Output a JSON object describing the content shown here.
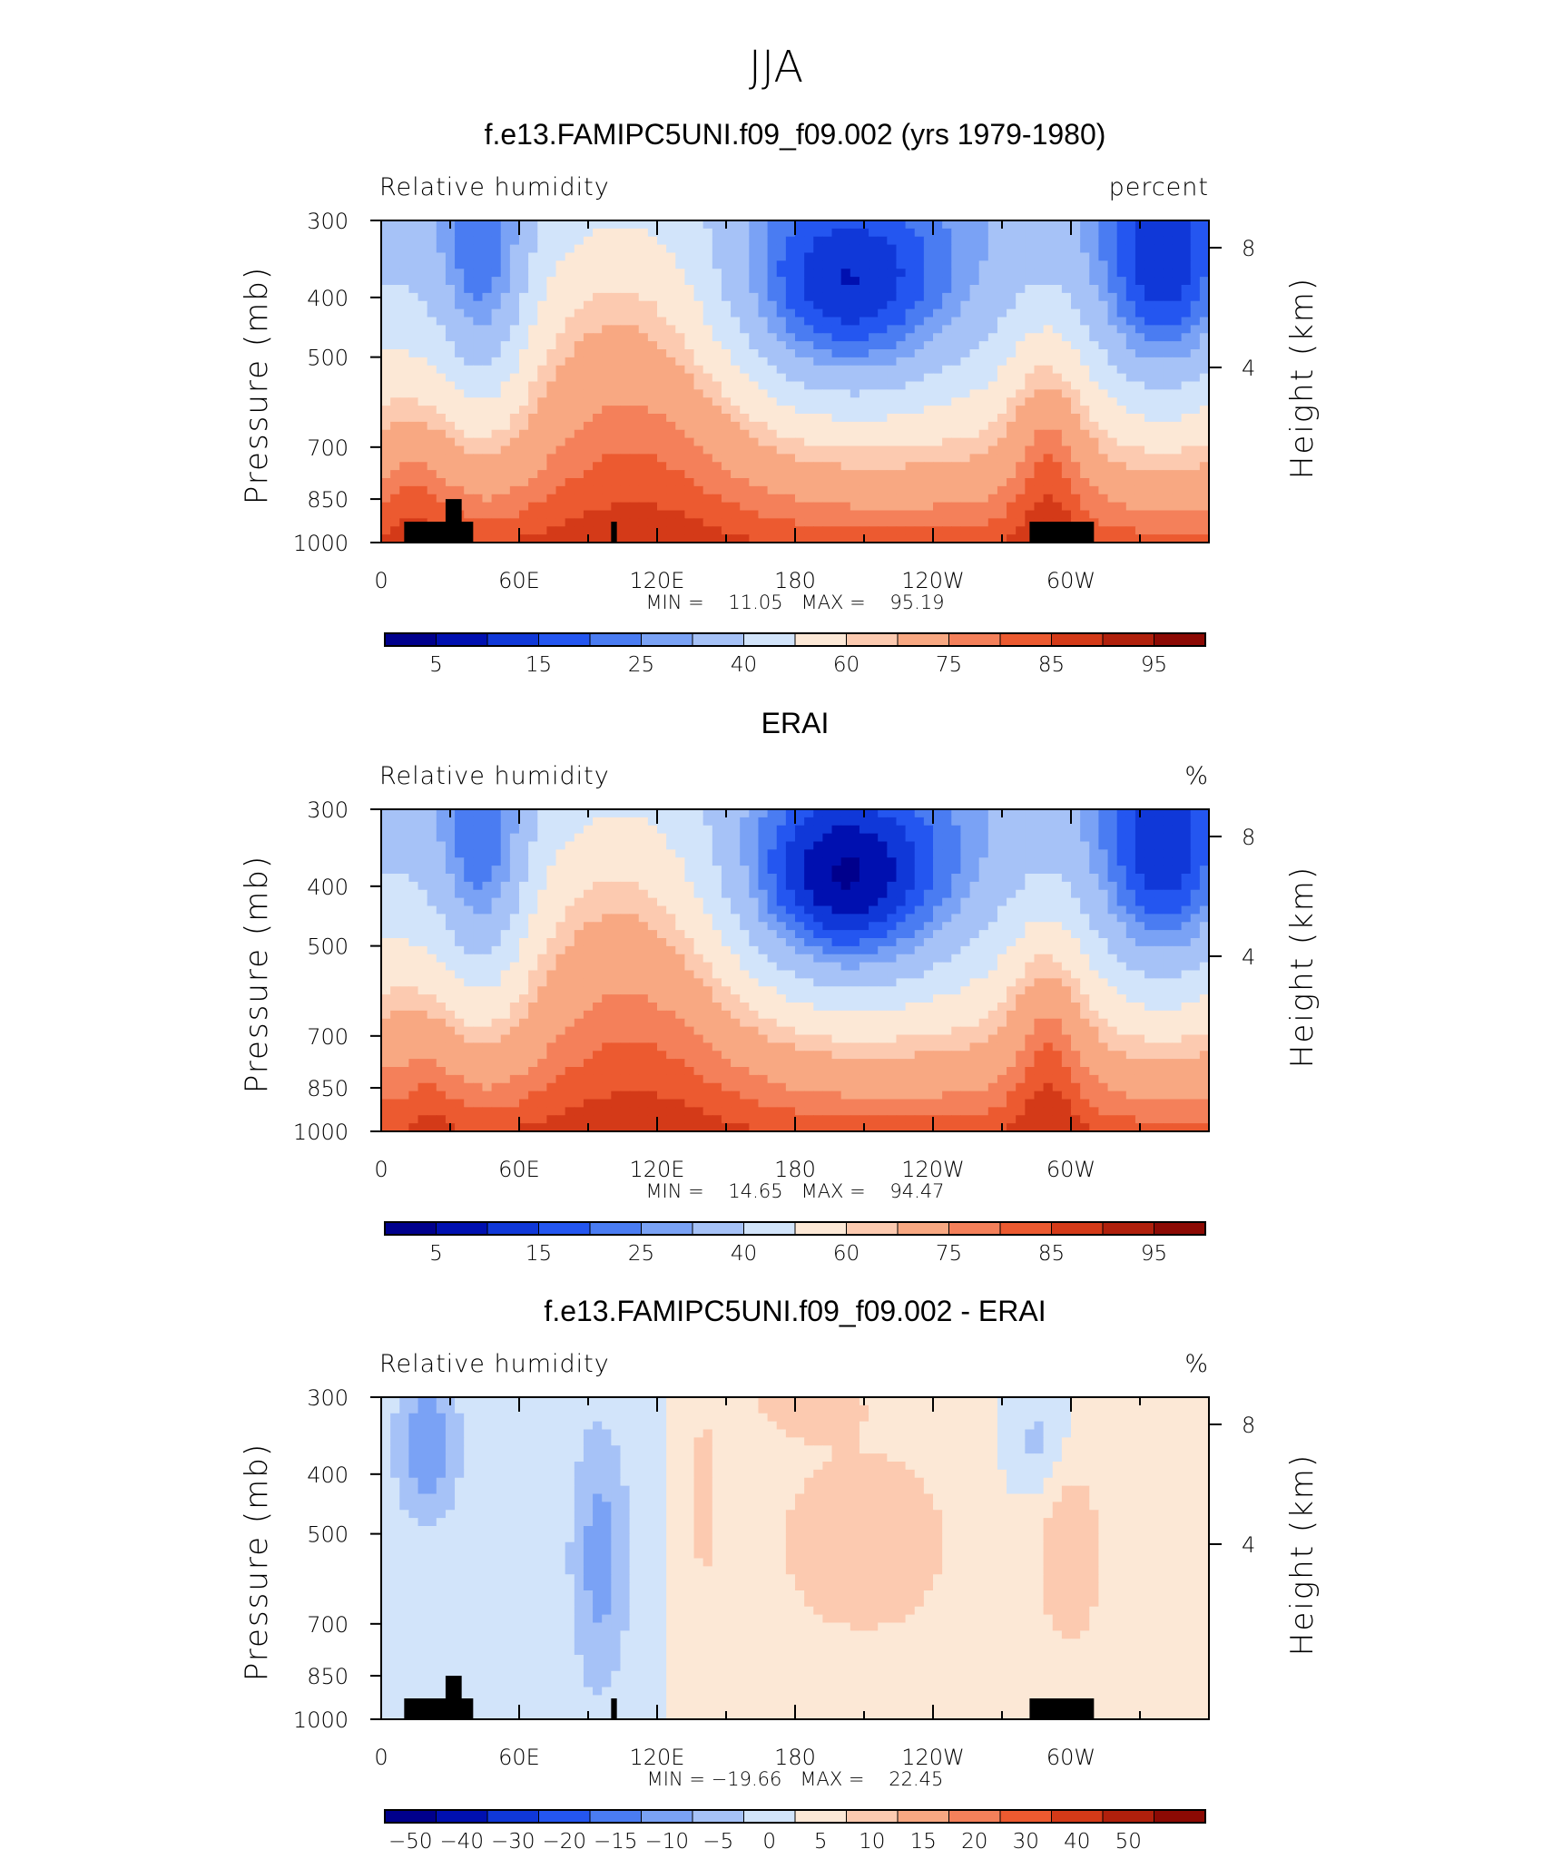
{
  "figure": {
    "title": "JJA"
  },
  "colors": {
    "rh_levels": [
      "#00008c",
      "#0010b0",
      "#1038d8",
      "#2456f0",
      "#4a7cf2",
      "#7aa2f5",
      "#a6c2f7",
      "#d2e4fa",
      "#fce8d6",
      "#fccab0",
      "#f8a882",
      "#f4805a",
      "#ec5a30",
      "#d43a18",
      "#b0200c",
      "#8c0a04"
    ],
    "diff_levels": [
      "#00008c",
      "#0010b0",
      "#1038d8",
      "#2456f0",
      "#4a7cf2",
      "#7aa2f5",
      "#a6c2f7",
      "#d2e4fa",
      "#fce8d6",
      "#fccab0",
      "#f8a882",
      "#f4805a",
      "#ec5a30",
      "#d43a18",
      "#b0200c",
      "#8c0a04"
    ],
    "terrain": "#000000"
  },
  "chart_data": [
    {
      "type": "heatmap",
      "title": "f.e13.FAMIPC5UNI.f09_f09.002 (yrs 1979-1980)",
      "left_label": "Relative humidity",
      "right_label": "percent",
      "ylabel": "Pressure (mb)",
      "ylabel_right": "Height (km)",
      "x_ticks": [
        "0",
        "60E",
        "120E",
        "180",
        "120W",
        "60W"
      ],
      "y_ticks": [
        "300",
        "400",
        "500",
        "700",
        "850",
        "1000"
      ],
      "y_ticks_right": [
        "8",
        "4"
      ],
      "stats": "MIN =    11.05   MAX =    95.19",
      "colorbar_labels": [
        "5",
        "15",
        "25",
        "40",
        "60",
        "75",
        "85",
        "95"
      ],
      "min": 11.05,
      "max": 95.19
    },
    {
      "type": "heatmap",
      "title": "ERAI",
      "left_label": "Relative humidity",
      "right_label": "%",
      "ylabel": "Pressure (mb)",
      "ylabel_right": "Height (km)",
      "x_ticks": [
        "0",
        "60E",
        "120E",
        "180",
        "120W",
        "60W"
      ],
      "y_ticks": [
        "300",
        "400",
        "500",
        "700",
        "850",
        "1000"
      ],
      "y_ticks_right": [
        "8",
        "4"
      ],
      "stats": "MIN =    14.65   MAX =    94.47",
      "colorbar_labels": [
        "5",
        "15",
        "25",
        "40",
        "60",
        "75",
        "85",
        "95"
      ],
      "min": 14.65,
      "max": 94.47
    },
    {
      "type": "heatmap",
      "title": "f.e13.FAMIPC5UNI.f09_f09.002 - ERAI",
      "left_label": "Relative humidity",
      "right_label": "%",
      "ylabel": "Pressure (mb)",
      "ylabel_right": "Height (km)",
      "x_ticks": [
        "0",
        "60E",
        "120E",
        "180",
        "120W",
        "60W"
      ],
      "y_ticks": [
        "300",
        "400",
        "500",
        "700",
        "850",
        "1000"
      ],
      "y_ticks_right": [
        "8",
        "4"
      ],
      "stats": "MIN = −19.66   MAX =    22.45",
      "colorbar_labels": [
        "−50",
        "−40",
        "−30",
        "−20",
        "−15",
        "−10",
        "−5",
        "0",
        "5",
        "10",
        "15",
        "20",
        "30",
        "40",
        "50"
      ],
      "min": -19.66,
      "max": 22.45
    }
  ]
}
